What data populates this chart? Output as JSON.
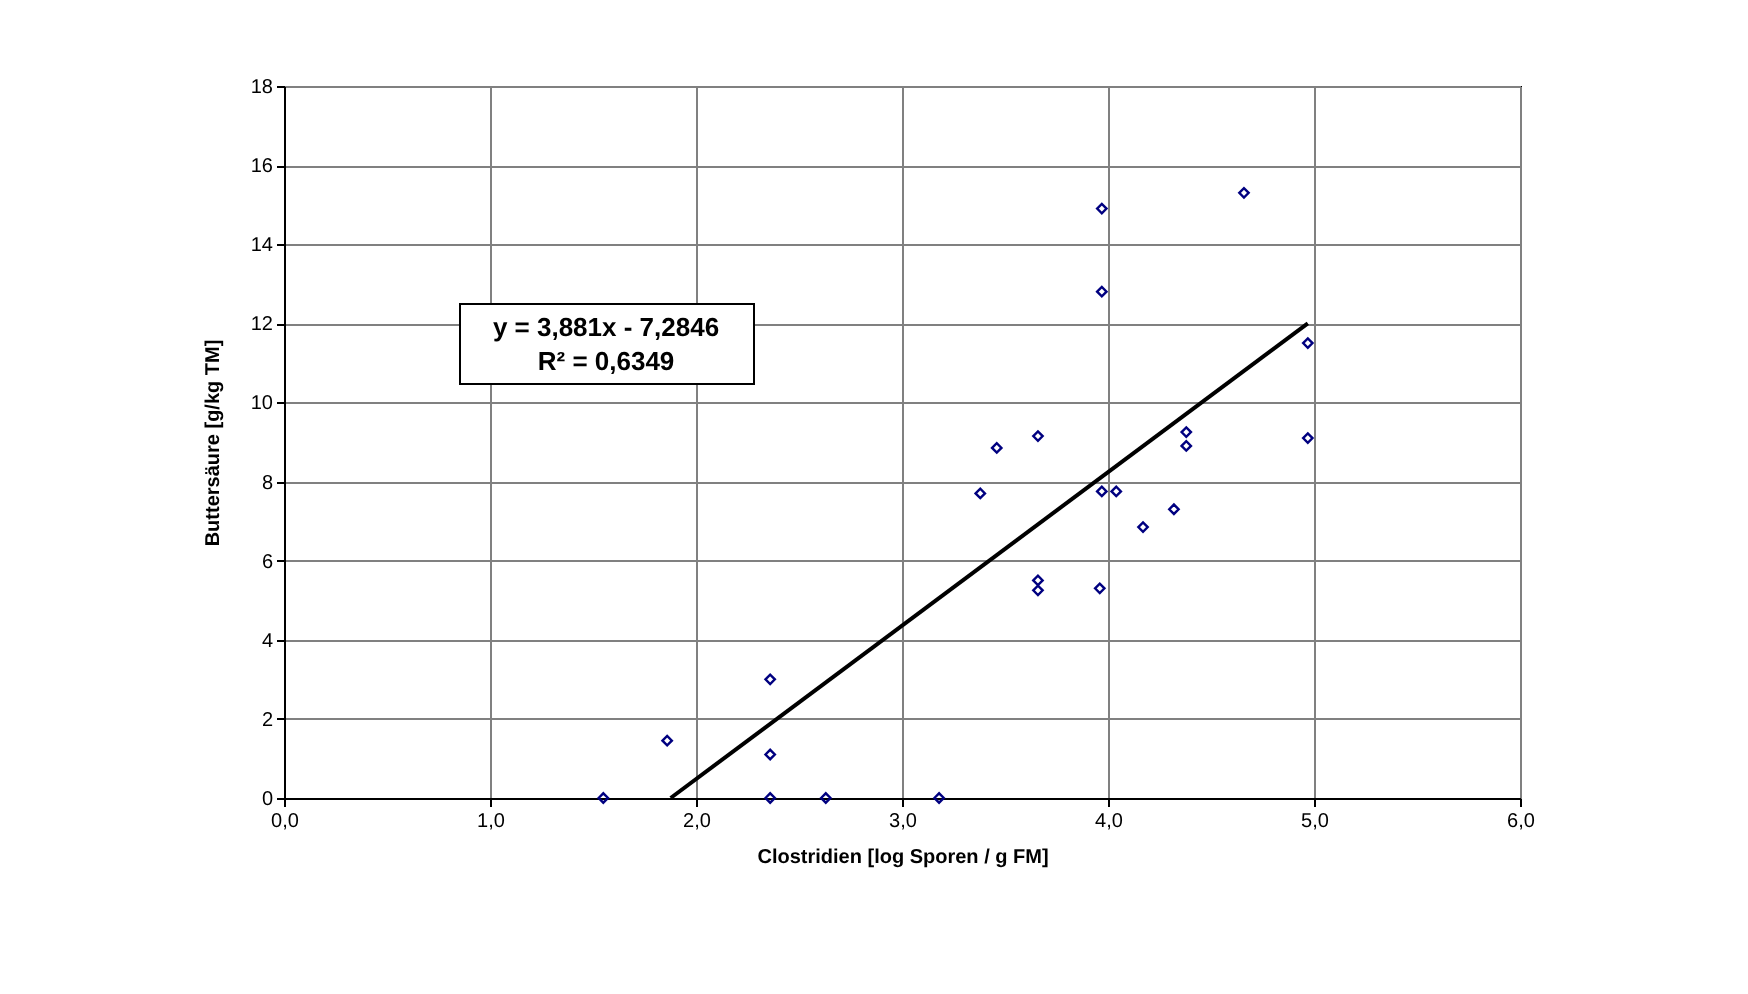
{
  "chart_data": {
    "type": "scatter",
    "xlabel": "Clostridien [log Sporen / g FM]",
    "ylabel": "Buttersäure [g/kg TM]",
    "annotations": [
      "y = 3,881x - 7,2846",
      "R² = 0,6349"
    ],
    "xlim": [
      0,
      6
    ],
    "xticks": [
      {
        "value": 0,
        "label": "0,0"
      },
      {
        "value": 1,
        "label": "1,0"
      },
      {
        "value": 2,
        "label": "2,0"
      },
      {
        "value": 3,
        "label": "3,0"
      },
      {
        "value": 4,
        "label": "4,0"
      },
      {
        "value": 5,
        "label": "5,0"
      },
      {
        "value": 6,
        "label": "6,0"
      }
    ],
    "ylim": [
      0,
      18
    ],
    "yticks": [
      0,
      2,
      4,
      6,
      8,
      10,
      12,
      14,
      16,
      18
    ],
    "grid": true,
    "marker": "diamond",
    "series": [
      {
        "color": "#000080",
        "x": [
          3.97,
          4.66,
          3.97,
          4.97,
          4.97,
          4.38,
          4.38,
          3.66,
          3.46,
          3.38,
          3.97,
          4.04,
          4.32,
          4.17,
          3.66,
          3.66,
          3.96,
          2.36,
          1.86,
          2.36,
          1.55,
          2.36,
          2.63,
          3.18
        ],
        "values": [
          14.9,
          15.3,
          12.8,
          11.5,
          9.1,
          9.25,
          8.9,
          9.15,
          8.85,
          7.7,
          7.75,
          7.75,
          7.3,
          6.85,
          5.5,
          5.25,
          5.3,
          3.0,
          1.45,
          1.1,
          0,
          0,
          0,
          0
        ]
      },
      {
        "type": "line",
        "color": "#000000",
        "x": [
          1.877,
          4.97
        ],
        "values": [
          0,
          12.0
        ],
        "marker": "none"
      }
    ]
  }
}
